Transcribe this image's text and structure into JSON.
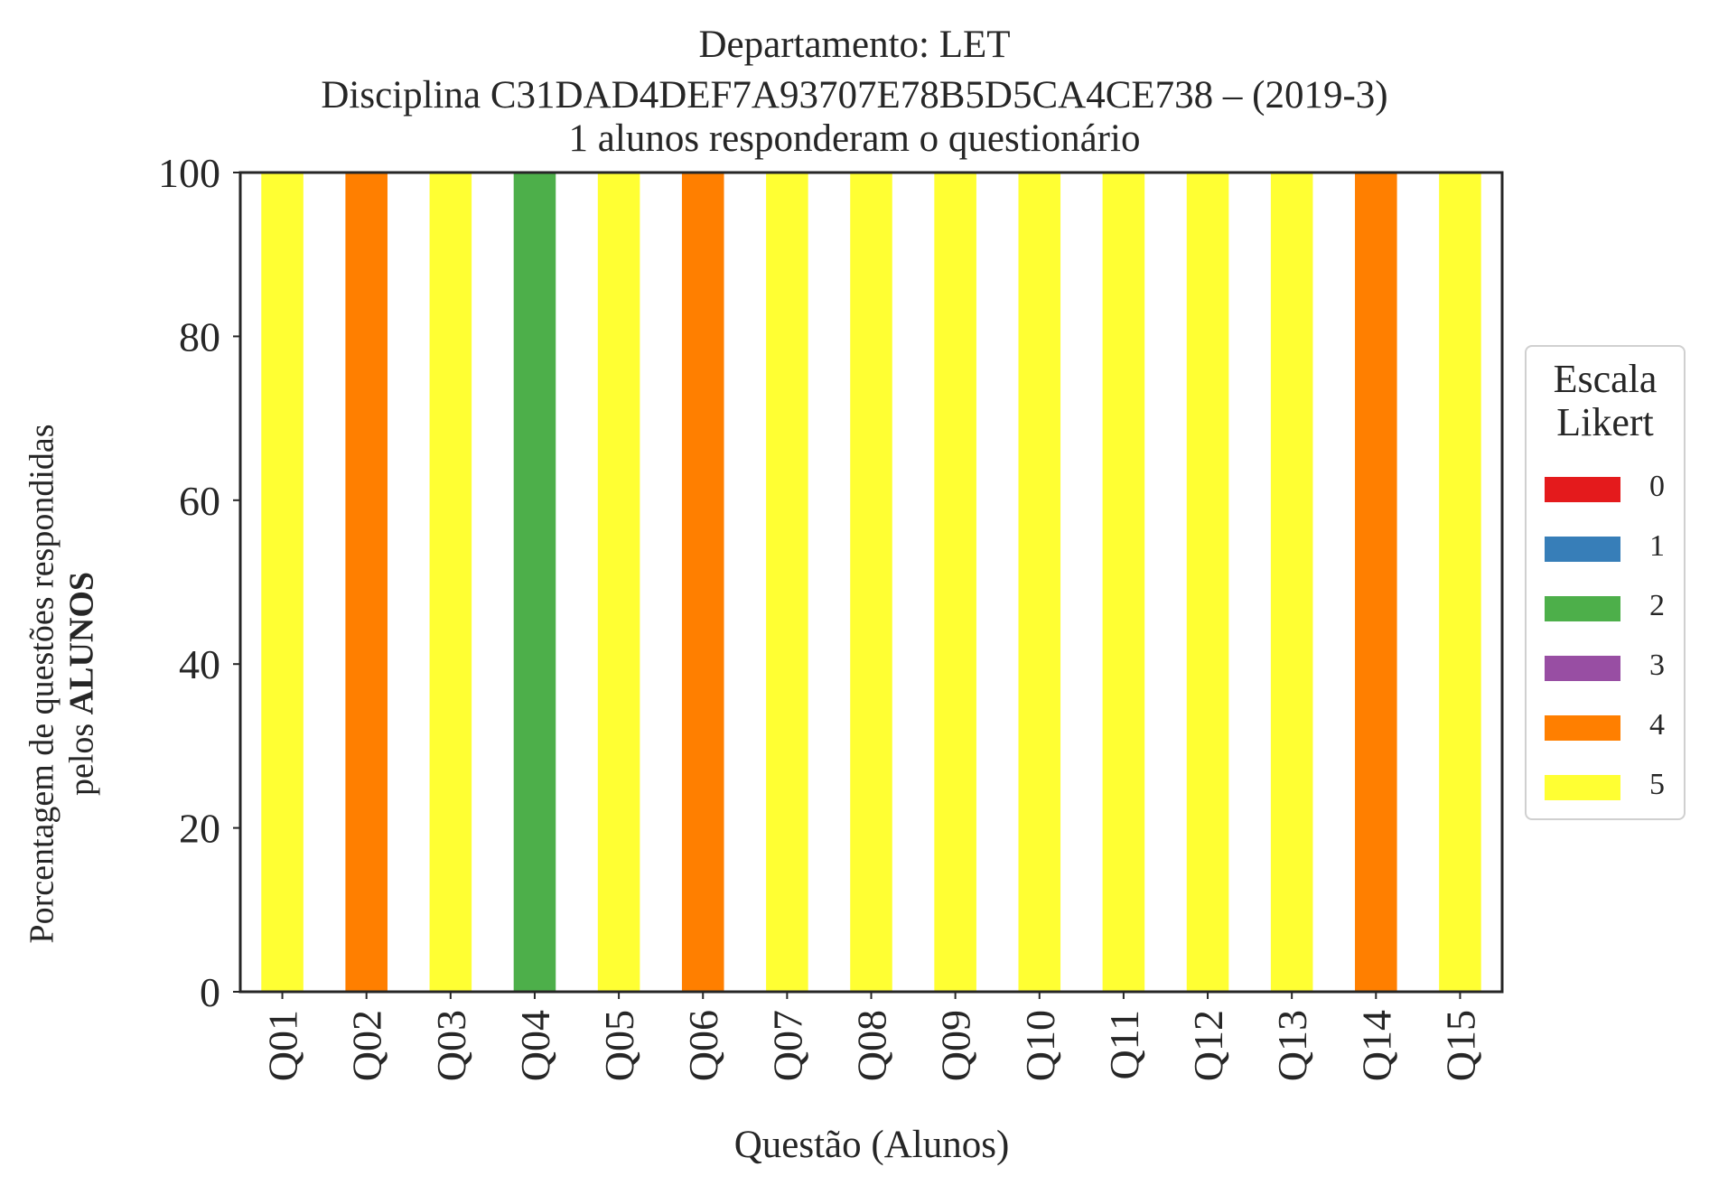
{
  "title_lines": [
    "Departamento: LET",
    "Disciplina C31DAD4DEF7A93707E78B5D5CA4CE738 – (2019-3)",
    "1 alunos responderam o questionário"
  ],
  "ylabel": {
    "line1": "Porcentagem de questões respondidas",
    "line2_prefix": "pelos ",
    "line2_bold": "ALUNOS"
  },
  "xlabel": "Questão (Alunos)",
  "legend": {
    "title_line1": "Escala",
    "title_line2": "Likert",
    "placement": "right"
  },
  "colors": {
    "0": "#e41a1c",
    "1": "#377eb8",
    "2": "#4daf4a",
    "3": "#984ea3",
    "4": "#ff7f00",
    "5": "#ffff33"
  },
  "chart_data": {
    "type": "bar",
    "stacked": true,
    "categories": [
      "Q01",
      "Q02",
      "Q03",
      "Q04",
      "Q05",
      "Q06",
      "Q07",
      "Q08",
      "Q09",
      "Q10",
      "Q11",
      "Q12",
      "Q13",
      "Q14",
      "Q15"
    ],
    "series": [
      {
        "name": "0",
        "values": [
          0,
          0,
          0,
          0,
          0,
          0,
          0,
          0,
          0,
          0,
          0,
          0,
          0,
          0,
          0
        ]
      },
      {
        "name": "1",
        "values": [
          0,
          0,
          0,
          0,
          0,
          0,
          0,
          0,
          0,
          0,
          0,
          0,
          0,
          0,
          0
        ]
      },
      {
        "name": "2",
        "values": [
          0,
          0,
          0,
          100,
          0,
          0,
          0,
          0,
          0,
          0,
          0,
          0,
          0,
          0,
          0
        ]
      },
      {
        "name": "3",
        "values": [
          0,
          0,
          0,
          0,
          0,
          0,
          0,
          0,
          0,
          0,
          0,
          0,
          0,
          0,
          0
        ]
      },
      {
        "name": "4",
        "values": [
          0,
          100,
          0,
          0,
          0,
          100,
          0,
          0,
          0,
          0,
          0,
          0,
          0,
          100,
          0
        ]
      },
      {
        "name": "5",
        "values": [
          100,
          0,
          100,
          0,
          100,
          0,
          100,
          100,
          100,
          100,
          100,
          100,
          100,
          0,
          100
        ]
      }
    ],
    "ylim": [
      0,
      100
    ],
    "yticks": [
      0,
      20,
      40,
      60,
      80,
      100
    ],
    "grid": false
  }
}
